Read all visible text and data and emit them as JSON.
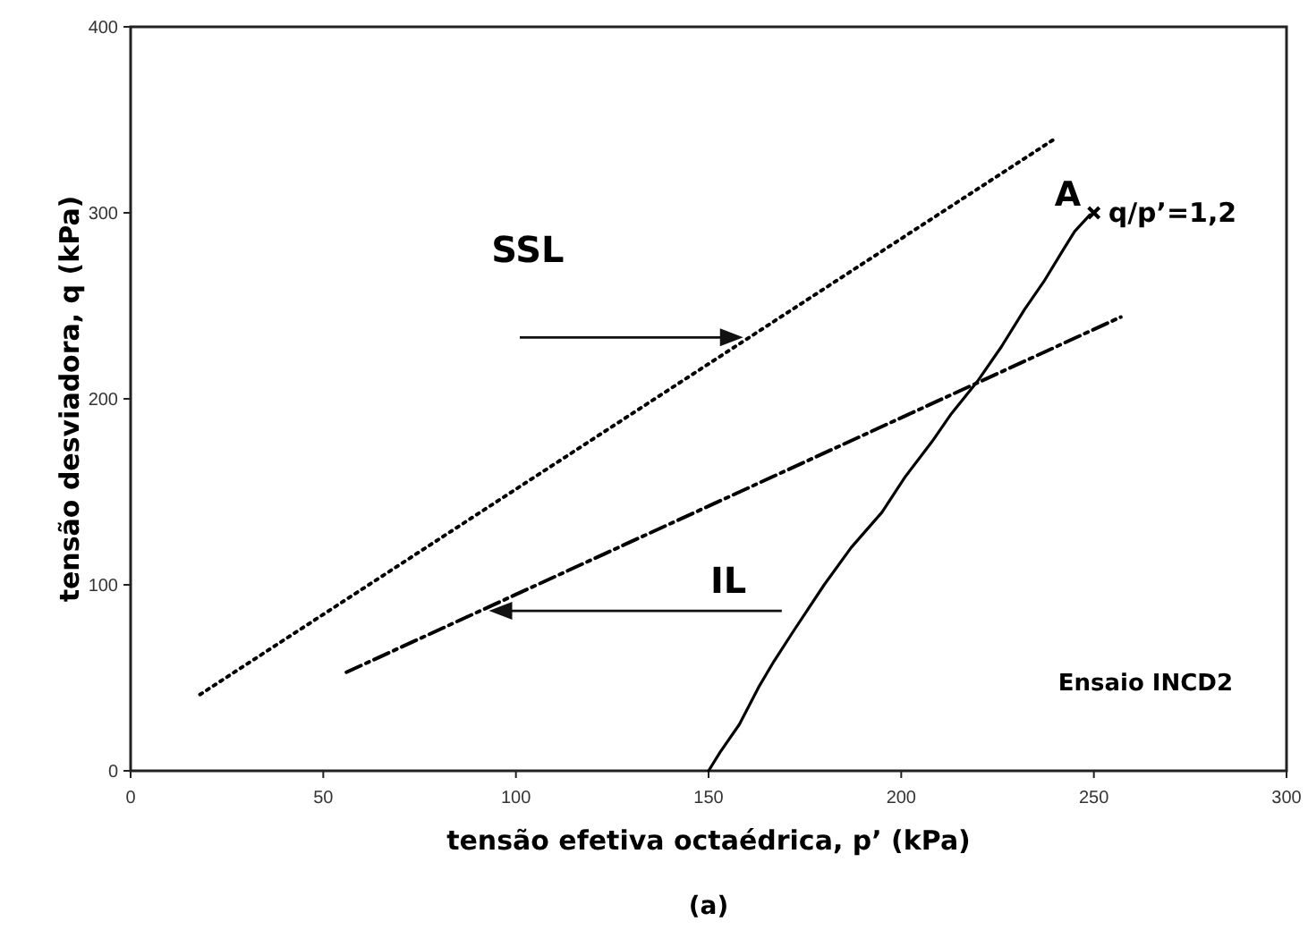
{
  "chart_data": {
    "type": "line",
    "xlabel": "tensão efetiva octaédrica, p’ (kPa)",
    "ylabel": "tensão desviadora, q (kPa)",
    "xlim": [
      0,
      300
    ],
    "ylim": [
      0,
      400
    ],
    "xticks": [
      0,
      50,
      100,
      150,
      200,
      250,
      300
    ],
    "yticks": [
      0,
      100,
      200,
      300,
      400
    ],
    "grid": false,
    "series": [
      {
        "color": "#000000",
        "line_style": "dotted",
        "x": [
          18,
          240
        ],
        "values": [
          41,
          340
        ]
      },
      {
        "color": "#000000",
        "line_style": "dashed",
        "x": [
          56,
          257
        ],
        "values": [
          53,
          244
        ]
      },
      {
        "color": "#000000",
        "line_style": "solid",
        "x": [
          150,
          153,
          158,
          163,
          167,
          172,
          180,
          187,
          195,
          201,
          208,
          213,
          220,
          226,
          232,
          237,
          242,
          245,
          249
        ],
        "values": [
          0,
          10,
          25,
          45,
          59,
          75,
          100,
          120,
          139,
          158,
          177,
          192,
          210,
          228,
          248,
          263,
          280,
          290,
          299
        ]
      },
      {
        "type": "scatter",
        "color": "#000000",
        "marker": "cross",
        "x": [
          250
        ],
        "values": [
          300
        ]
      }
    ],
    "annotations": [
      "SSL",
      "IL",
      {
        "text": "A",
        "x": 250,
        "y": 300
      },
      {
        "text": "q/p’=1,2",
        "x": 250,
        "y": 300
      },
      "Ensaio INCD2",
      "(a)"
    ]
  }
}
